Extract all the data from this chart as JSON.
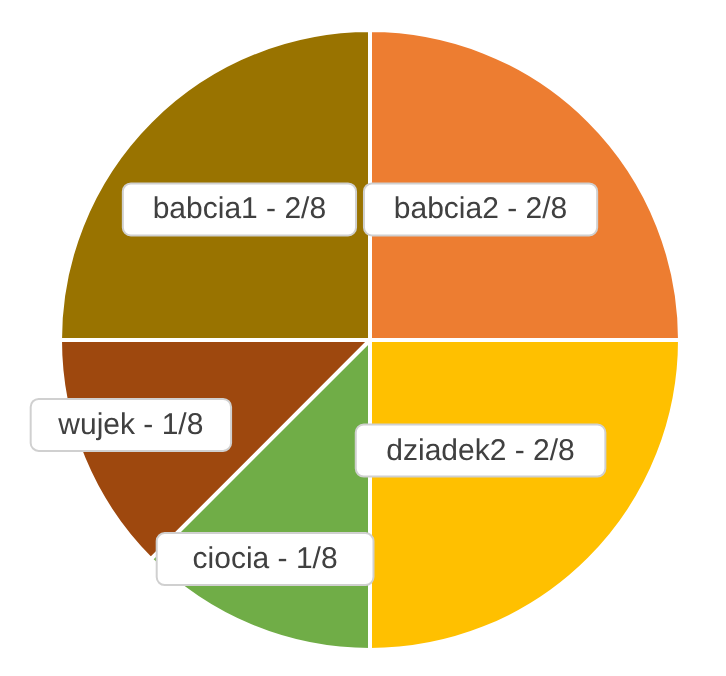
{
  "chart_data": {
    "type": "pie",
    "categories": [
      "babcia2",
      "dziadek2",
      "ciocia",
      "wujek",
      "babcia1"
    ],
    "values": [
      0.25,
      0.25,
      0.125,
      0.125,
      0.25
    ],
    "value_labels": [
      "2/8",
      "2/8",
      "1/8",
      "1/8",
      "2/8"
    ],
    "colors": [
      "#ed7d31",
      "#ffc000",
      "#70ad47",
      "#9e480e",
      "#997300"
    ],
    "legend": false
  }
}
